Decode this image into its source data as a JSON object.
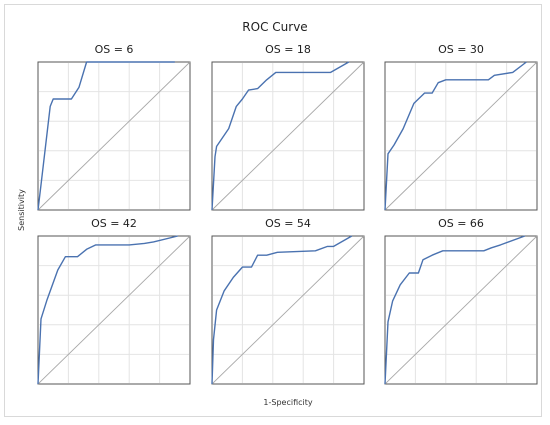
{
  "chart_data": {
    "type": "line",
    "title": "ROC Curve",
    "xlabel": "1-Specificity",
    "ylabel": "Sensitivity",
    "xlim": [
      0,
      1
    ],
    "ylim": [
      0,
      1
    ],
    "grid": true,
    "line_color": "#4a72b0",
    "diagonal_color": "#a8a8a8",
    "panels": [
      {
        "title": "OS = 6",
        "x": [
          0,
          0.02,
          0.08,
          0.1,
          0.22,
          0.27,
          0.32,
          0.4,
          0.9
        ],
        "y": [
          0,
          0.17,
          0.7,
          0.75,
          0.75,
          0.83,
          1.0,
          1.0,
          1.0
        ]
      },
      {
        "title": "OS = 18",
        "x": [
          0,
          0.02,
          0.03,
          0.11,
          0.16,
          0.2,
          0.24,
          0.3,
          0.36,
          0.42,
          0.78,
          0.9
        ],
        "y": [
          0,
          0.36,
          0.43,
          0.55,
          0.7,
          0.75,
          0.81,
          0.82,
          0.88,
          0.93,
          0.93,
          1.0
        ]
      },
      {
        "title": "OS = 30",
        "x": [
          0,
          0.02,
          0.06,
          0.12,
          0.19,
          0.26,
          0.31,
          0.35,
          0.4,
          0.68,
          0.72,
          0.84,
          0.93
        ],
        "y": [
          0,
          0.38,
          0.44,
          0.55,
          0.72,
          0.79,
          0.79,
          0.86,
          0.88,
          0.88,
          0.91,
          0.93,
          1.0
        ]
      },
      {
        "title": "OS = 42",
        "x": [
          0,
          0.02,
          0.06,
          0.13,
          0.18,
          0.26,
          0.32,
          0.38,
          0.6,
          0.7,
          0.76,
          0.92
        ],
        "y": [
          0,
          0.44,
          0.57,
          0.77,
          0.86,
          0.86,
          0.91,
          0.94,
          0.94,
          0.95,
          0.96,
          1.0
        ]
      },
      {
        "title": "OS = 54",
        "x": [
          0,
          0.01,
          0.03,
          0.08,
          0.14,
          0.2,
          0.26,
          0.3,
          0.36,
          0.43,
          0.68,
          0.76,
          0.8,
          0.92
        ],
        "y": [
          0,
          0.3,
          0.5,
          0.63,
          0.72,
          0.79,
          0.79,
          0.87,
          0.87,
          0.89,
          0.9,
          0.93,
          0.93,
          1.0
        ]
      },
      {
        "title": "OS = 66",
        "x": [
          0,
          0.02,
          0.05,
          0.1,
          0.16,
          0.22,
          0.25,
          0.31,
          0.38,
          0.65,
          0.7,
          0.76,
          0.92
        ],
        "y": [
          0,
          0.42,
          0.56,
          0.67,
          0.75,
          0.75,
          0.84,
          0.87,
          0.9,
          0.9,
          0.92,
          0.94,
          1.0
        ]
      }
    ]
  }
}
